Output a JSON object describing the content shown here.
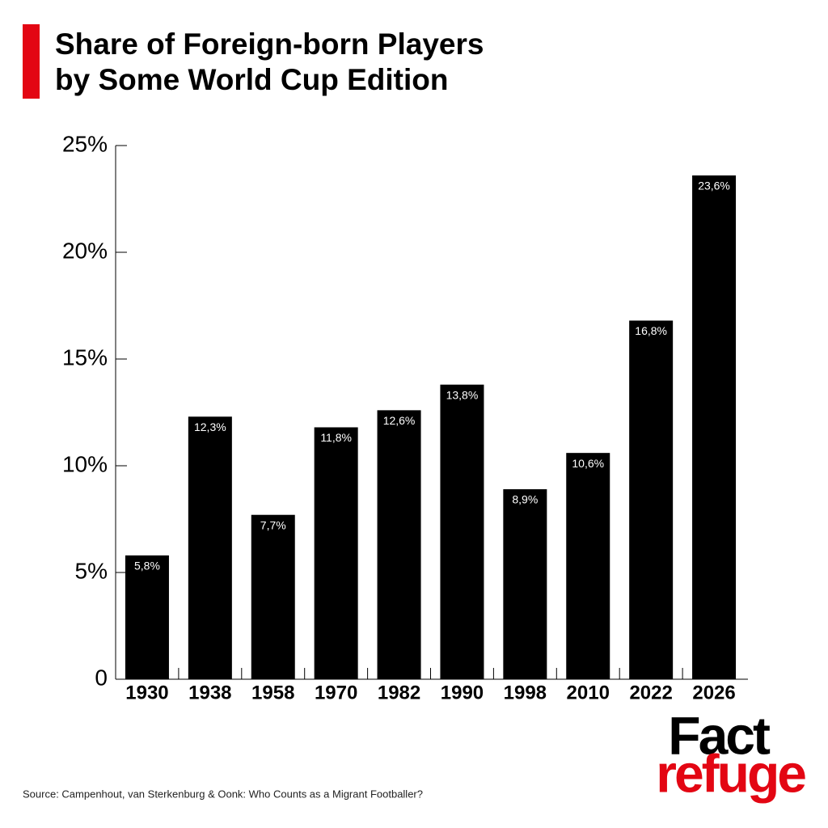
{
  "chart_data": {
    "type": "bar",
    "title": [
      "Share of Foreign-born Players",
      "by Some World Cup Edition"
    ],
    "categories": [
      "1930",
      "1938",
      "1958",
      "1970",
      "1982",
      "1990",
      "1998",
      "2010",
      "2022",
      "2026"
    ],
    "values": [
      5.8,
      12.3,
      7.7,
      11.8,
      12.6,
      13.8,
      8.9,
      10.6,
      16.8,
      23.6
    ],
    "value_labels": [
      "5,8%",
      "12,3%",
      "7,7%",
      "11,8%",
      "12,6%",
      "13,8%",
      "8,9%",
      "10,6%",
      "16,8%",
      "23,6%"
    ],
    "color": "#000000",
    "ylim": [
      0,
      25
    ],
    "yticks": [
      0,
      {
        "value": 5,
        "label": "5%"
      },
      {
        "value": 10,
        "label": "10%"
      },
      {
        "value": 15,
        "label": "15%"
      },
      {
        "value": 20,
        "label": "20%"
      },
      {
        "value": 25,
        "label": "25%"
      }
    ],
    "grid": false,
    "source": "Source: Campenhout, van Sterkenburg & Oonk: Who Counts as a Migrant Footballer?",
    "brand": [
      "Fact",
      "refuge"
    ]
  }
}
